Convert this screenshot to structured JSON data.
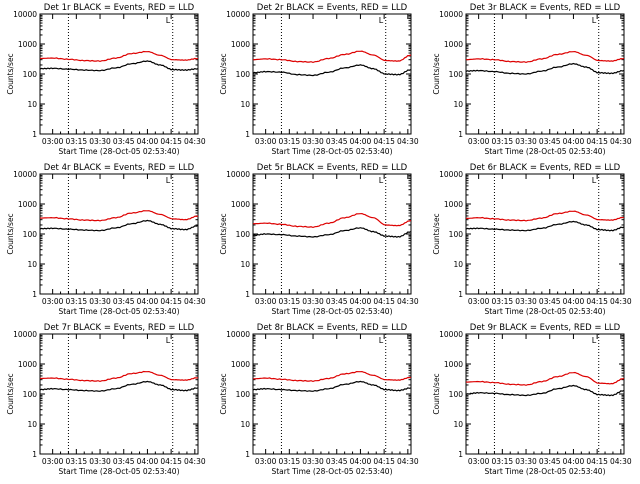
{
  "colors": {
    "events": "#000000",
    "lld": "#dd0000",
    "axis": "#000000",
    "background": "#ffffff"
  },
  "axis": {
    "ylabel": "Counts/sec",
    "xlabel": "Start Time (28-Oct-05 02:53:40)",
    "x_ticks": [
      "03:00",
      "03:15",
      "03:30",
      "03:45",
      "04:00",
      "04:15",
      "04:30"
    ],
    "y_ticks": [
      "1",
      "10",
      "100",
      "1000",
      "10000"
    ],
    "ylim": [
      1,
      10000
    ],
    "yscale": "log",
    "xrange_minutes": [
      172,
      272
    ],
    "vlines_minutes": [
      190,
      256
    ],
    "marker_text": "L"
  },
  "chart_data": [
    {
      "type": "line",
      "title": "Det 1r BLACK = Events, RED = LLD",
      "x": [
        172,
        180,
        190,
        200,
        210,
        220,
        230,
        240,
        248,
        256,
        264,
        272
      ],
      "series": [
        {
          "values": [
            150,
            155,
            145,
            135,
            130,
            160,
            220,
            270,
            200,
            140,
            135,
            150
          ]
        },
        {
          "values": [
            330,
            340,
            310,
            280,
            270,
            340,
            480,
            560,
            420,
            300,
            290,
            330
          ]
        }
      ]
    },
    {
      "type": "line",
      "title": "Det 2r BLACK = Events, RED = LLD",
      "x": [
        172,
        180,
        190,
        200,
        210,
        220,
        230,
        240,
        248,
        256,
        264,
        272
      ],
      "series": [
        {
          "values": [
            110,
            120,
            115,
            95,
            90,
            115,
            160,
            200,
            150,
            100,
            95,
            140
          ]
        },
        {
          "values": [
            300,
            320,
            300,
            260,
            250,
            330,
            450,
            580,
            430,
            280,
            270,
            430
          ]
        }
      ]
    },
    {
      "type": "line",
      "title": "Det 3r BLACK = Events, RED = LLD",
      "x": [
        172,
        180,
        190,
        200,
        210,
        220,
        230,
        240,
        248,
        256,
        264,
        272
      ],
      "series": [
        {
          "values": [
            125,
            130,
            120,
            105,
            100,
            125,
            170,
            220,
            170,
            110,
            105,
            130
          ]
        },
        {
          "values": [
            300,
            320,
            300,
            260,
            250,
            320,
            450,
            560,
            420,
            280,
            270,
            330
          ]
        }
      ]
    },
    {
      "type": "line",
      "title": "Det 4r BLACK = Events, RED = LLD",
      "x": [
        172,
        180,
        190,
        200,
        210,
        220,
        230,
        240,
        248,
        256,
        264,
        272
      ],
      "series": [
        {
          "values": [
            150,
            155,
            145,
            135,
            130,
            160,
            220,
            280,
            210,
            150,
            140,
            190
          ]
        },
        {
          "values": [
            340,
            350,
            320,
            290,
            280,
            350,
            500,
            600,
            450,
            320,
            300,
            400
          ]
        }
      ]
    },
    {
      "type": "line",
      "title": "Det 5r BLACK = Events, RED = LLD",
      "x": [
        172,
        180,
        190,
        200,
        210,
        220,
        230,
        240,
        248,
        256,
        264,
        272
      ],
      "series": [
        {
          "values": [
            90,
            100,
            95,
            85,
            80,
            95,
            130,
            160,
            120,
            85,
            80,
            120
          ]
        },
        {
          "values": [
            220,
            230,
            210,
            180,
            170,
            230,
            350,
            480,
            350,
            200,
            190,
            280
          ]
        }
      ]
    },
    {
      "type": "line",
      "title": "Det 6r BLACK = Events, RED = LLD",
      "x": [
        172,
        180,
        190,
        200,
        210,
        220,
        230,
        240,
        248,
        256,
        264,
        272
      ],
      "series": [
        {
          "values": [
            150,
            155,
            145,
            135,
            130,
            155,
            210,
            260,
            200,
            140,
            130,
            170
          ]
        },
        {
          "values": [
            330,
            350,
            320,
            290,
            280,
            340,
            480,
            580,
            430,
            300,
            290,
            360
          ]
        }
      ]
    },
    {
      "type": "line",
      "title": "Det 7r BLACK = Events, RED = LLD",
      "x": [
        172,
        180,
        190,
        200,
        210,
        220,
        230,
        240,
        248,
        256,
        264,
        272
      ],
      "series": [
        {
          "values": [
            140,
            150,
            140,
            130,
            125,
            150,
            210,
            260,
            200,
            140,
            130,
            160
          ]
        },
        {
          "values": [
            330,
            340,
            310,
            280,
            270,
            340,
            480,
            560,
            420,
            300,
            290,
            350
          ]
        }
      ]
    },
    {
      "type": "line",
      "title": "Det 8r BLACK = Events, RED = LLD",
      "x": [
        172,
        180,
        190,
        200,
        210,
        220,
        230,
        240,
        248,
        256,
        264,
        272
      ],
      "series": [
        {
          "values": [
            140,
            150,
            140,
            130,
            125,
            150,
            210,
            260,
            200,
            140,
            130,
            160
          ]
        },
        {
          "values": [
            320,
            340,
            310,
            280,
            270,
            330,
            470,
            560,
            420,
            300,
            290,
            360
          ]
        }
      ]
    },
    {
      "type": "line",
      "title": "Det 9r BLACK = Events, RED = LLD",
      "x": [
        172,
        180,
        190,
        200,
        210,
        220,
        230,
        240,
        248,
        256,
        264,
        272
      ],
      "series": [
        {
          "values": [
            100,
            110,
            105,
            95,
            90,
            105,
            150,
            190,
            140,
            95,
            90,
            130
          ]
        },
        {
          "values": [
            250,
            260,
            240,
            210,
            200,
            260,
            380,
            520,
            380,
            230,
            220,
            330
          ]
        }
      ]
    }
  ]
}
